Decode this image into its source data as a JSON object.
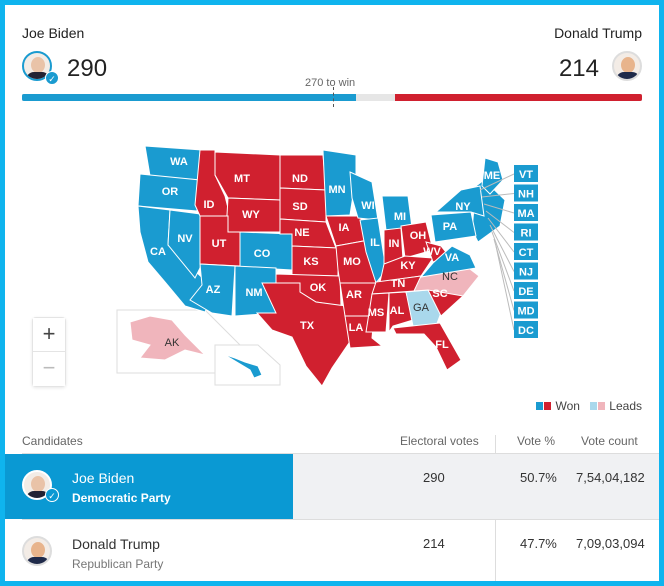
{
  "colors": {
    "dem": "#1a9bd0",
    "rep": "#d0202f",
    "dem_lead": "#a9d8ec",
    "rep_lead": "#f0b5bc",
    "undecided": "#e6e6e6"
  },
  "header": {
    "left": {
      "name": "Joe Biden",
      "votes": "290",
      "icon": "check-icon"
    },
    "right": {
      "name": "Donald Trump",
      "votes": "214"
    },
    "threshold": "270 to win",
    "bar": {
      "dem": 290,
      "rep": 214,
      "total": 538,
      "threshold": 270
    }
  },
  "map": {
    "states": [
      {
        "code": "WA",
        "status": "dem"
      },
      {
        "code": "OR",
        "status": "dem"
      },
      {
        "code": "CA",
        "status": "dem"
      },
      {
        "code": "NV",
        "status": "dem"
      },
      {
        "code": "ID",
        "status": "rep"
      },
      {
        "code": "MT",
        "status": "rep"
      },
      {
        "code": "WY",
        "status": "rep"
      },
      {
        "code": "UT",
        "status": "rep"
      },
      {
        "code": "CO",
        "status": "dem"
      },
      {
        "code": "AZ",
        "status": "dem"
      },
      {
        "code": "NM",
        "status": "dem"
      },
      {
        "code": "ND",
        "status": "rep"
      },
      {
        "code": "SD",
        "status": "rep"
      },
      {
        "code": "NE",
        "status": "rep"
      },
      {
        "code": "KS",
        "status": "rep"
      },
      {
        "code": "OK",
        "status": "rep"
      },
      {
        "code": "TX",
        "status": "rep"
      },
      {
        "code": "MN",
        "status": "dem"
      },
      {
        "code": "IA",
        "status": "rep"
      },
      {
        "code": "MO",
        "status": "rep"
      },
      {
        "code": "AR",
        "status": "rep"
      },
      {
        "code": "LA",
        "status": "rep"
      },
      {
        "code": "WI",
        "status": "dem"
      },
      {
        "code": "IL",
        "status": "dem"
      },
      {
        "code": "MI",
        "status": "dem"
      },
      {
        "code": "IN",
        "status": "rep"
      },
      {
        "code": "OH",
        "status": "rep"
      },
      {
        "code": "KY",
        "status": "rep"
      },
      {
        "code": "TN",
        "status": "rep"
      },
      {
        "code": "MS",
        "status": "rep"
      },
      {
        "code": "AL",
        "status": "rep"
      },
      {
        "code": "GA",
        "status": "dem_lead"
      },
      {
        "code": "FL",
        "status": "rep"
      },
      {
        "code": "SC",
        "status": "rep"
      },
      {
        "code": "NC",
        "status": "rep_lead"
      },
      {
        "code": "WV",
        "status": "rep"
      },
      {
        "code": "VA",
        "status": "dem"
      },
      {
        "code": "PA",
        "status": "dem"
      },
      {
        "code": "NY",
        "status": "dem"
      },
      {
        "code": "ME",
        "status": "dem"
      },
      {
        "code": "AK",
        "status": "rep_lead"
      },
      {
        "code": "HI",
        "status": "dem"
      }
    ],
    "small_states": [
      {
        "code": "VT",
        "status": "dem"
      },
      {
        "code": "NH",
        "status": "dem"
      },
      {
        "code": "MA",
        "status": "dem"
      },
      {
        "code": "RI",
        "status": "dem"
      },
      {
        "code": "CT",
        "status": "dem"
      },
      {
        "code": "NJ",
        "status": "dem"
      },
      {
        "code": "DE",
        "status": "dem"
      },
      {
        "code": "MD",
        "status": "dem"
      },
      {
        "code": "DC",
        "status": "dem"
      }
    ],
    "zoom_in": "+",
    "zoom_out": "−",
    "legend": {
      "won": "Won",
      "leads": "Leads"
    }
  },
  "table": {
    "headers": [
      "Candidates",
      "Electoral votes",
      "Vote %",
      "Vote count"
    ],
    "rows": [
      {
        "name": "Joe Biden",
        "party": "Democratic Party",
        "electoral": "290",
        "pct": "50.7%",
        "count": "7,54,04,182"
      },
      {
        "name": "Donald Trump",
        "party": "Republican Party",
        "electoral": "214",
        "pct": "47.7%",
        "count": "7,09,03,094"
      }
    ]
  }
}
